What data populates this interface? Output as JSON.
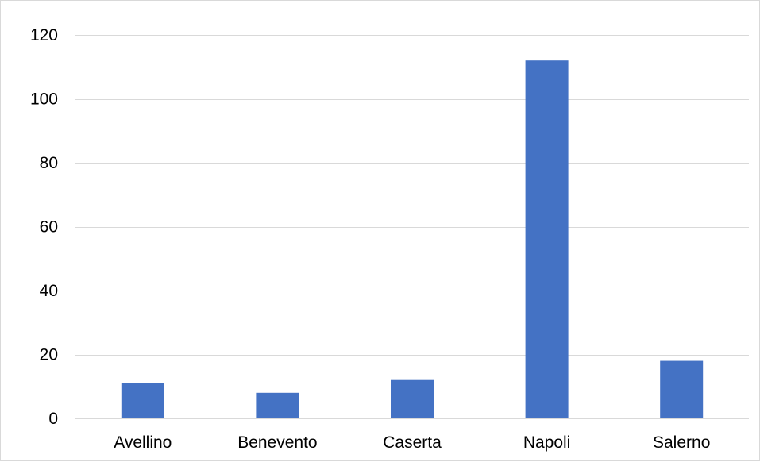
{
  "chart_data": {
    "type": "bar",
    "title": "",
    "xlabel": "",
    "ylabel": "",
    "categories": [
      "Avellino",
      "Benevento",
      "Caserta",
      "Napoli",
      "Salerno"
    ],
    "values": [
      11,
      8,
      12,
      112,
      18
    ],
    "ylim": [
      0,
      120
    ],
    "yticks": [
      0,
      20,
      40,
      60,
      80,
      100,
      120
    ],
    "grid": true,
    "legend": "none",
    "bar_color": "#4472c4",
    "grid_color": "#d9d9d9"
  }
}
